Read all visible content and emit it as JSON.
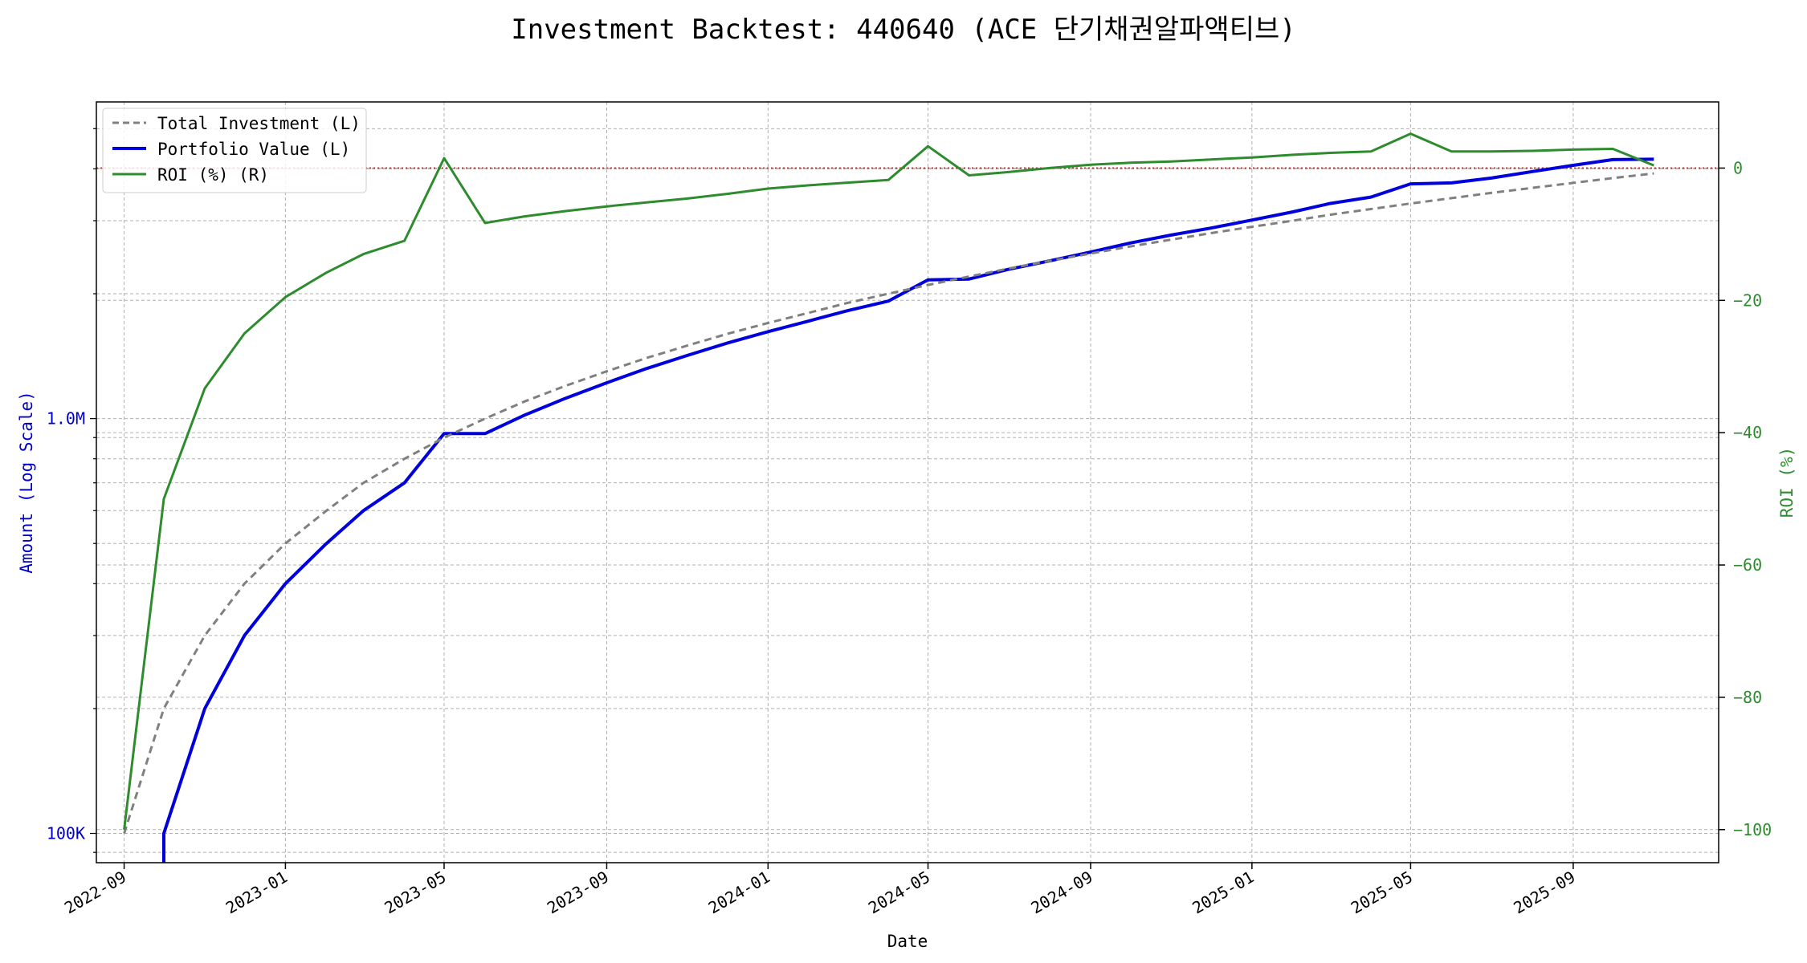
{
  "chart_data": {
    "type": "line",
    "title": "Investment Backtest: 440640 (ACE 단기채권알파액티브)",
    "xlabel": "Date",
    "ylabel_left": "Amount (Log Scale)",
    "ylabel_right": "ROI (%)",
    "x_range": [
      "2022-08-11",
      "2025-12-20"
    ],
    "y_left_range": [
      85000,
      5800000
    ],
    "y_left_scale": "log",
    "y_right_range": [
      -105,
      10
    ],
    "grid": true,
    "legend_position": "top-left",
    "x_ticks": [
      "2022-09",
      "2023-01",
      "2023-05",
      "2023-09",
      "2024-01",
      "2024-05",
      "2024-09",
      "2025-01",
      "2025-05",
      "2025-09"
    ],
    "y_left_ticks": [
      {
        "value": 100000,
        "label": "100K"
      },
      {
        "value": 1000000,
        "label": "1.0M"
      }
    ],
    "y_right_ticks": [
      {
        "value": 0,
        "label": "0"
      },
      {
        "value": -20,
        "label": "−20"
      },
      {
        "value": -40,
        "label": "−40"
      },
      {
        "value": -60,
        "label": "−60"
      },
      {
        "value": -80,
        "label": "−80"
      },
      {
        "value": -100,
        "label": "−100"
      }
    ],
    "colors": {
      "total_investment": "#808080",
      "portfolio_value": "#0000dd",
      "roi": "#2e8b2e",
      "zero_line": "#d62728",
      "left_axis": "#0000cc",
      "right_axis": "#2e8b2e"
    },
    "series": [
      {
        "name": "Total Investment (L)",
        "axis": "left",
        "style": "dashed",
        "x": [
          "2022-09-01",
          "2022-10-01",
          "2022-11-01",
          "2022-12-01",
          "2023-01-01",
          "2023-02-01",
          "2023-03-01",
          "2023-04-01",
          "2023-05-01",
          "2023-06-01",
          "2023-07-01",
          "2023-08-01",
          "2023-09-01",
          "2023-10-01",
          "2023-11-01",
          "2023-12-01",
          "2024-01-01",
          "2024-02-01",
          "2024-03-01",
          "2024-04-01",
          "2024-05-01",
          "2024-06-01",
          "2024-07-01",
          "2024-08-01",
          "2024-09-01",
          "2024-10-01",
          "2024-11-01",
          "2024-12-01",
          "2025-01-01",
          "2025-02-01",
          "2025-03-01",
          "2025-04-01",
          "2025-05-01",
          "2025-06-01",
          "2025-07-01",
          "2025-08-01",
          "2025-09-01",
          "2025-10-01",
          "2025-11-01"
        ],
        "values": [
          100000,
          200000,
          300000,
          400000,
          500000,
          600000,
          700000,
          800000,
          900000,
          1000000,
          1100000,
          1200000,
          1300000,
          1400000,
          1500000,
          1600000,
          1700000,
          1800000,
          1900000,
          2000000,
          2100000,
          2200000,
          2300000,
          2400000,
          2500000,
          2600000,
          2700000,
          2800000,
          2900000,
          3000000,
          3100000,
          3200000,
          3300000,
          3400000,
          3500000,
          3600000,
          3700000,
          3800000,
          3900000
        ]
      },
      {
        "name": "Portfolio Value (L)",
        "axis": "left",
        "style": "solid",
        "x": [
          "2022-10-01",
          "2022-11-01",
          "2022-12-01",
          "2023-01-01",
          "2023-02-01",
          "2023-03-01",
          "2023-04-01",
          "2023-05-01",
          "2023-06-01",
          "2023-07-01",
          "2023-08-01",
          "2023-09-01",
          "2023-10-01",
          "2023-11-01",
          "2023-12-01",
          "2024-01-01",
          "2024-02-01",
          "2024-03-01",
          "2024-04-01",
          "2024-05-01",
          "2024-06-01",
          "2024-07-01",
          "2024-08-01",
          "2024-09-01",
          "2024-10-01",
          "2024-11-01",
          "2024-12-01",
          "2025-01-01",
          "2025-02-01",
          "2025-03-01",
          "2025-04-01",
          "2025-05-01",
          "2025-06-01",
          "2025-07-01",
          "2025-08-01",
          "2025-09-01",
          "2025-10-01",
          "2025-11-01"
        ],
        "values": [
          100000,
          200000,
          300000,
          400000,
          500000,
          600000,
          700000,
          920000,
          920000,
          1020000,
          1120000,
          1220000,
          1320000,
          1420000,
          1520000,
          1620000,
          1720000,
          1820000,
          1920000,
          2160000,
          2170000,
          2290000,
          2400000,
          2520000,
          2650000,
          2770000,
          2880000,
          3010000,
          3150000,
          3300000,
          3420000,
          3680000,
          3700000,
          3800000,
          3940000,
          4080000,
          4210000,
          4220000
        ]
      },
      {
        "name": "ROI (%) (R)",
        "axis": "right",
        "style": "solid",
        "x": [
          "2022-09-01",
          "2022-10-01",
          "2022-11-01",
          "2022-12-01",
          "2023-01-01",
          "2023-02-01",
          "2023-03-01",
          "2023-04-01",
          "2023-05-01",
          "2023-06-01",
          "2023-07-01",
          "2023-08-01",
          "2023-09-01",
          "2023-10-01",
          "2023-11-01",
          "2023-12-01",
          "2024-01-01",
          "2024-02-01",
          "2024-03-01",
          "2024-04-01",
          "2024-05-01",
          "2024-06-01",
          "2024-07-01",
          "2024-08-01",
          "2024-09-01",
          "2024-10-01",
          "2024-11-01",
          "2024-12-01",
          "2025-01-01",
          "2025-02-01",
          "2025-03-01",
          "2025-04-01",
          "2025-05-01",
          "2025-06-01",
          "2025-07-01",
          "2025-08-01",
          "2025-09-01",
          "2025-10-01",
          "2025-11-01"
        ],
        "values": [
          -100,
          -50,
          -33.3,
          -25,
          -19.5,
          -15.8,
          -13,
          -11,
          1.5,
          -8.3,
          -7.3,
          -6.5,
          -5.8,
          -5.2,
          -4.6,
          -3.9,
          -3.1,
          -2.6,
          -2.2,
          -1.8,
          3.3,
          -1.1,
          -0.6,
          0,
          0.5,
          0.8,
          1,
          1.3,
          1.6,
          2,
          2.3,
          2.5,
          5.2,
          2.5,
          2.5,
          2.6,
          2.8,
          2.9,
          0.4
        ]
      }
    ],
    "reference_line": {
      "axis": "right",
      "value": 0,
      "style": "dotted"
    }
  }
}
